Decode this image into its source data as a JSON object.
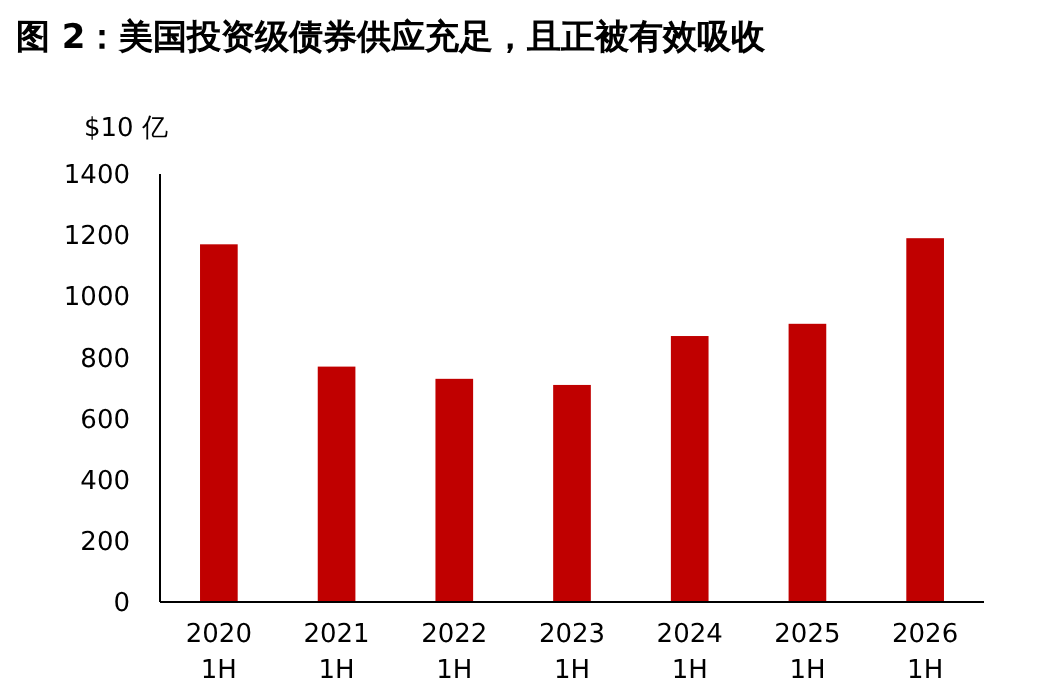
{
  "chart_data": {
    "type": "bar",
    "title": "图 2：美国投资级债券供应充足，且正被有效吸收",
    "ylabel": "$10 亿",
    "categories": [
      "2020 1H",
      "2021 1H",
      "2022 1H",
      "2023 1H",
      "2024 1H",
      "2025 1H",
      "2026 1H"
    ],
    "values": [
      1170,
      770,
      730,
      710,
      870,
      910,
      1190
    ],
    "color": "#c00000",
    "ylim": [
      0,
      1400
    ],
    "yticks": [
      0,
      200,
      400,
      600,
      800,
      1000,
      1200,
      1400
    ],
    "grid": false
  }
}
